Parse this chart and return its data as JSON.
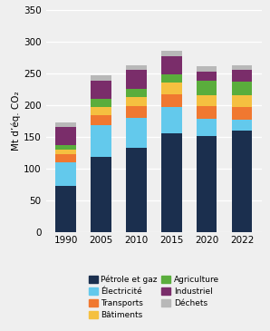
{
  "years": [
    "1990",
    "2005",
    "2010",
    "2015",
    "2020",
    "2022"
  ],
  "segments": {
    "Pétrole et gaz": [
      72,
      118,
      132,
      155,
      151,
      159
    ],
    "Électricité": [
      38,
      50,
      48,
      42,
      27,
      18
    ],
    "Transports": [
      12,
      16,
      18,
      20,
      20,
      20
    ],
    "Bâtiments": [
      8,
      13,
      15,
      18,
      18,
      18
    ],
    "Agriculture": [
      7,
      13,
      12,
      14,
      22,
      22
    ],
    "Industriel": [
      28,
      28,
      30,
      28,
      15,
      18
    ],
    "Déchets": [
      8,
      9,
      7,
      8,
      8,
      8
    ]
  },
  "colors": {
    "Pétrole et gaz": "#1b2f4e",
    "Électricité": "#63c9ec",
    "Transports": "#f07830",
    "Bâtiments": "#f5c040",
    "Agriculture": "#5aad3c",
    "Industriel": "#7a2d6a",
    "Déchets": "#b8b8b8"
  },
  "ylabel": "Mt d’éq. CO₂",
  "ylim": [
    0,
    350
  ],
  "yticks": [
    0,
    50,
    100,
    150,
    200,
    250,
    300,
    350
  ],
  "bg_color": "#efefef",
  "left_legend": [
    "Pétrole et gaz",
    "Transports",
    "Agriculture",
    "Déchets"
  ],
  "right_legend": [
    "Électricité",
    "Bâtiments",
    "Industriel"
  ]
}
